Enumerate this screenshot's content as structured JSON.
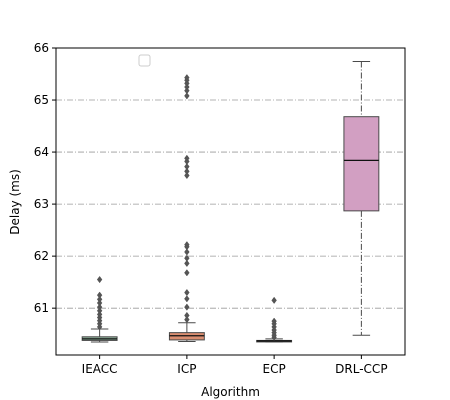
{
  "chart_data": {
    "type": "box",
    "xlabel": "Algorithm",
    "ylabel": "Delay (ms)",
    "ylim": [
      60.1,
      66.0
    ],
    "yticks": [
      61,
      62,
      63,
      64,
      65,
      66
    ],
    "grid": "horizontal dash-dot",
    "legend": "top-left, empty",
    "categories": [
      "IEACC",
      "ICP",
      "ECP",
      "DRL-CCP"
    ],
    "colors": [
      "#8db19a",
      "#d98d70",
      "#8fa0c4",
      "#d29fc2"
    ],
    "boxes": [
      {
        "category": "IEACC",
        "whisker_low": 60.35,
        "q1": 60.38,
        "median": 60.41,
        "q3": 60.45,
        "whisker_high": 60.6,
        "outliers": [
          60.64,
          60.7,
          60.76,
          60.82,
          60.88,
          60.95,
          61.02,
          61.1,
          61.17,
          61.25,
          61.55
        ]
      },
      {
        "category": "ICP",
        "whisker_low": 60.36,
        "q1": 60.39,
        "median": 60.47,
        "q3": 60.53,
        "whisker_high": 60.72,
        "outliers": [
          60.78,
          60.86,
          61.02,
          61.18,
          61.3,
          61.68,
          61.86,
          61.96,
          62.08,
          62.18,
          62.22,
          63.55,
          63.63,
          63.72,
          63.82,
          63.88,
          65.08,
          65.18,
          65.25,
          65.32,
          65.38,
          65.43
        ]
      },
      {
        "category": "ECP",
        "whisker_low": 60.35,
        "q1": 60.36,
        "median": 60.37,
        "q3": 60.38,
        "whisker_high": 60.41,
        "outliers": [
          60.44,
          60.48,
          60.53,
          60.58,
          60.64,
          60.7,
          60.75,
          61.15
        ]
      },
      {
        "category": "DRL-CCP",
        "whisker_low": 60.48,
        "q1": 62.87,
        "median": 63.84,
        "q3": 64.68,
        "whisker_high": 65.74,
        "outliers": []
      }
    ]
  }
}
